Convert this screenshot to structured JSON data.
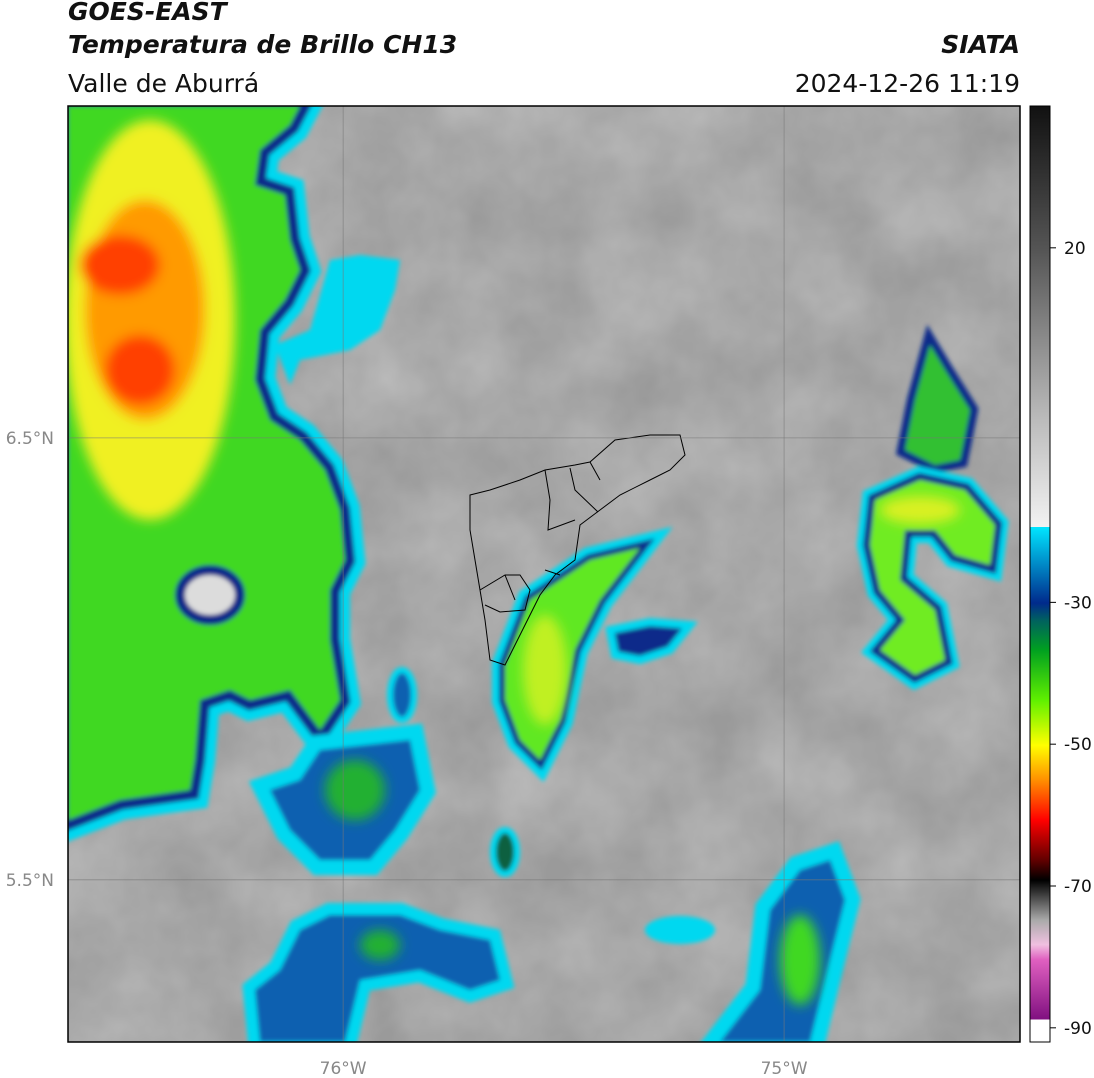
{
  "header": {
    "satellite": "GOES-EAST",
    "product": "Temperatura de Brillo CH13",
    "source": "SIATA",
    "region": "Valle de Aburrá",
    "datetime": "2024-12-26 11:19"
  },
  "map": {
    "lonlim": [
      -76.624,
      -74.465
    ],
    "latlim": [
      5.133,
      7.251
    ],
    "lonticks": [
      {
        "value": -76,
        "label": "76°W"
      },
      {
        "value": -75,
        "label": "75°W"
      }
    ],
    "latticks": [
      {
        "value": 6.5,
        "label": "6.5°N"
      },
      {
        "value": 5.5,
        "label": "5.5°N"
      }
    ],
    "grid": true
  },
  "colorbar": {
    "lim": [
      -92,
      40
    ],
    "ticks": [
      20,
      -30,
      -50,
      -70,
      -90
    ]
  }
}
